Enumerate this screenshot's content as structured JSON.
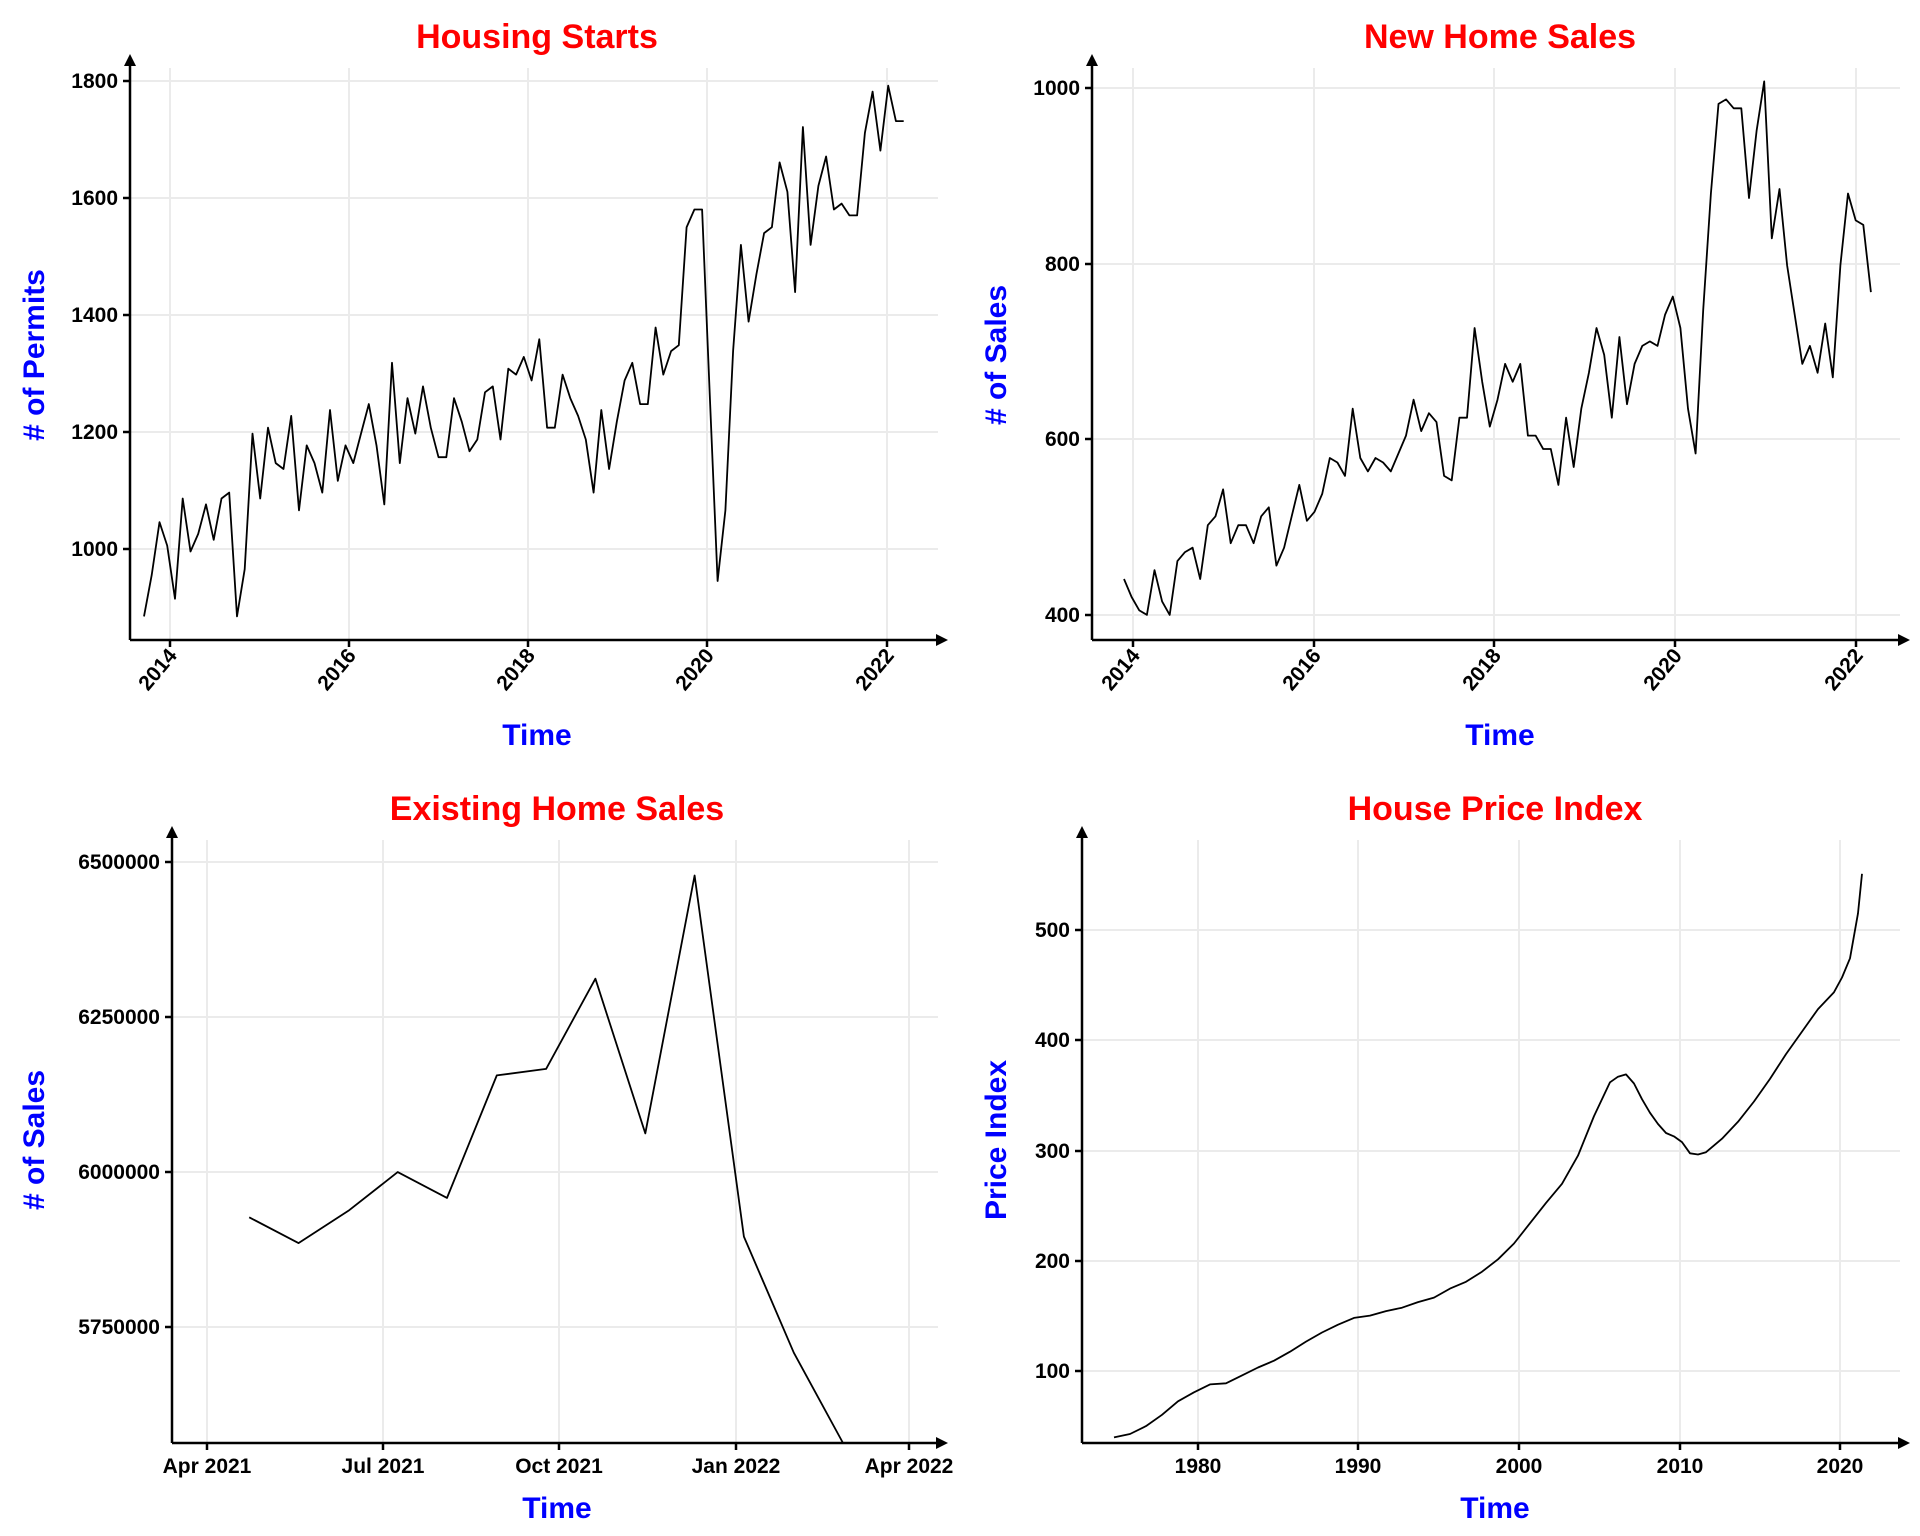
{
  "chart_data": [
    {
      "type": "line",
      "title": "Housing Starts",
      "xlabel": "Time",
      "ylabel": "# of Permits",
      "x_ticks": [
        "2014",
        "2016",
        "2018",
        "2020",
        "2022"
      ],
      "y_ticks": [
        "1000",
        "1200",
        "1400",
        "1600",
        "1800"
      ],
      "x_tick_rotation": -50,
      "xlim": [
        2013.85,
        2022.6
      ],
      "ylim": [
        840,
        1810
      ],
      "grid": true,
      "series": [
        {
          "x_start": 2014.0,
          "x_step": 0.08333,
          "values": [
            880,
            950,
            1040,
            1000,
            910,
            1080,
            990,
            1020,
            1070,
            1010,
            1080,
            1090,
            880,
            960,
            1190,
            1080,
            1200,
            1140,
            1130,
            1220,
            1060,
            1170,
            1140,
            1090,
            1230,
            1110,
            1170,
            1140,
            1190,
            1240,
            1170,
            1070,
            1310,
            1140,
            1250,
            1190,
            1270,
            1200,
            1150,
            1150,
            1250,
            1210,
            1160,
            1180,
            1260,
            1270,
            1180,
            1300,
            1290,
            1320,
            1280,
            1350,
            1200,
            1200,
            1290,
            1250,
            1220,
            1180,
            1090,
            1230,
            1130,
            1210,
            1280,
            1310,
            1240,
            1240,
            1370,
            1290,
            1330,
            1340,
            1540,
            1570,
            1570,
            1250,
            940,
            1060,
            1330,
            1510,
            1380,
            1460,
            1530,
            1540,
            1650,
            1600,
            1430,
            1710,
            1510,
            1610,
            1660,
            1570,
            1580,
            1560,
            1560,
            1700,
            1770,
            1670,
            1780,
            1720,
            1720
          ]
        }
      ]
    },
    {
      "type": "line",
      "title": "New Home Sales",
      "xlabel": "Time",
      "ylabel": "# of Sales",
      "x_ticks": [
        "2014",
        "2016",
        "2018",
        "2020",
        "2022"
      ],
      "y_ticks": [
        "400",
        "600",
        "800",
        "1000"
      ],
      "x_tick_rotation": -50,
      "xlim": [
        2013.65,
        2022.55
      ],
      "ylim": [
        372,
        1010
      ],
      "grid": true,
      "series": [
        {
          "x_start": 2014.0,
          "x_step": 0.08333,
          "values": [
            440,
            420,
            405,
            400,
            450,
            415,
            400,
            460,
            470,
            475,
            440,
            500,
            510,
            540,
            480,
            500,
            500,
            480,
            510,
            520,
            455,
            475,
            510,
            545,
            505,
            515,
            535,
            575,
            570,
            555,
            630,
            575,
            560,
            575,
            570,
            560,
            580,
            600,
            640,
            605,
            625,
            615,
            555,
            550,
            620,
            620,
            720,
            660,
            610,
            640,
            680,
            660,
            680,
            600,
            600,
            585,
            585,
            545,
            620,
            565,
            630,
            670,
            720,
            690,
            620,
            710,
            635,
            680,
            700,
            705,
            700,
            735,
            755,
            720,
            630,
            580,
            740,
            870,
            970,
            975,
            965,
            965,
            865,
            940,
            995,
            820,
            875,
            790,
            735,
            680,
            700,
            670,
            725,
            665,
            790,
            870,
            840,
            835,
            760
          ]
        }
      ]
    },
    {
      "type": "line",
      "title": "Existing Home Sales",
      "xlabel": "Time",
      "ylabel": "# of Sales",
      "x_ticks": [
        "Apr 2021",
        "Jul 2021",
        "Oct 2021",
        "Jan 2022",
        "Apr 2022"
      ],
      "y_ticks": [
        "5750000",
        "6000000",
        "6250000",
        "6500000"
      ],
      "xlim": [
        2021.12,
        2022.42
      ],
      "ylim": [
        5610000,
        6545000
      ],
      "grid": true,
      "series": [
        {
          "x": [
            2021.25,
            2021.333,
            2021.417,
            2021.5,
            2021.583,
            2021.667,
            2021.75,
            2021.833,
            2021.917,
            2022.0,
            2022.083,
            2022.167,
            2022.25
          ],
          "values": [
            5960000,
            5920000,
            5970000,
            6030000,
            5990000,
            6180000,
            6190000,
            6330000,
            6090000,
            6490000,
            5930000,
            5750000,
            5610000
          ]
        }
      ]
    },
    {
      "type": "line",
      "title": "House Price Index",
      "xlabel": "Time",
      "ylabel": "Price Index",
      "x_ticks": [
        "1980",
        "1990",
        "2000",
        "2010",
        "2020"
      ],
      "y_ticks": [
        "100",
        "200",
        "300",
        "400",
        "500"
      ],
      "xlim": [
        1973.0,
        2024.5
      ],
      "ylim": [
        55,
        590
      ],
      "grid": true,
      "series": [
        {
          "x": [
            1975,
            1976,
            1977,
            1978,
            1979,
            1980,
            1981,
            1982,
            1983,
            1984,
            1985,
            1986,
            1987,
            1988,
            1989,
            1990,
            1991,
            1992,
            1993,
            1994,
            1995,
            1996,
            1997,
            1998,
            1999,
            2000,
            2001,
            2002,
            2003,
            2004,
            2005,
            2006,
            2006.5,
            2007,
            2007.5,
            2008,
            2008.5,
            2009,
            2009.5,
            2010,
            2010.5,
            2011,
            2011.5,
            2012,
            2013,
            2014,
            2015,
            2016,
            2017,
            2018,
            2019,
            2020,
            2020.5,
            2021,
            2021.5,
            2021.75
          ],
          "values": [
            60,
            63,
            70,
            80,
            92,
            100,
            107,
            108,
            115,
            122,
            128,
            136,
            145,
            153,
            160,
            166,
            168,
            172,
            175,
            180,
            184,
            192,
            198,
            207,
            218,
            232,
            250,
            268,
            285,
            310,
            345,
            375,
            380,
            382,
            374,
            360,
            348,
            338,
            330,
            327,
            322,
            312,
            311,
            313,
            325,
            340,
            358,
            378,
            400,
            420,
            440,
            455,
            468,
            485,
            525,
            560
          ]
        }
      ]
    }
  ]
}
